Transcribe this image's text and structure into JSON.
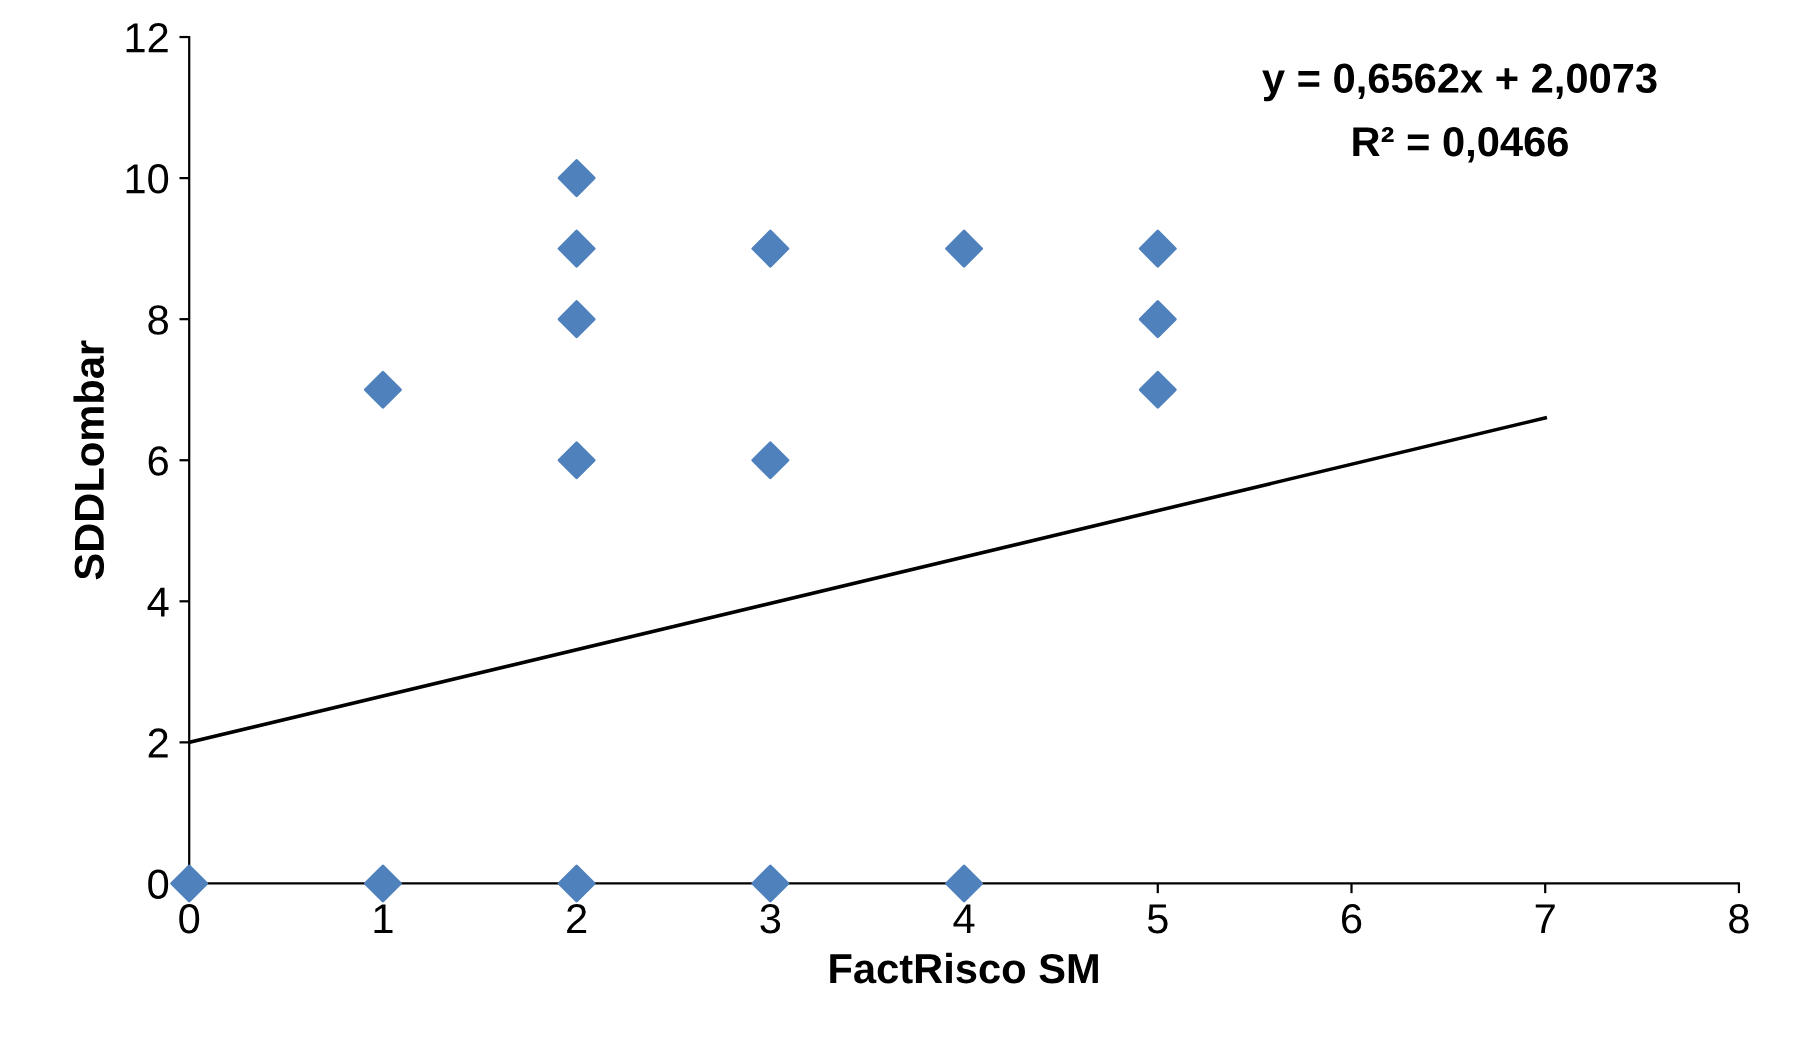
{
  "chart_data": {
    "type": "scatter",
    "xlabel": "FactRisco SM",
    "ylabel": "SDDLombar",
    "xlim": [
      0,
      8
    ],
    "xticks": [
      0,
      1,
      2,
      3,
      4,
      5,
      6,
      7,
      8
    ],
    "ylim": [
      0,
      12
    ],
    "yticks": [
      0,
      2,
      4,
      6,
      8,
      10,
      12
    ],
    "grid": false,
    "legend": false,
    "marker": "diamond",
    "annotations": [
      "y = 0,6562x + 2,0073",
      "R² = 0,0466"
    ],
    "series": [
      {
        "color": "#4f81bd",
        "x": [
          0,
          1,
          2,
          3,
          4,
          1,
          2,
          2,
          2,
          2,
          3,
          3,
          4,
          5,
          5,
          5
        ],
        "values": [
          0,
          0,
          0,
          0,
          0,
          7,
          10,
          9,
          8,
          6,
          9,
          6,
          9,
          9,
          8,
          7
        ]
      },
      {
        "type": "line",
        "color": "#000000",
        "marker": "none",
        "x": [
          0,
          7
        ],
        "values": [
          2.0,
          6.6
        ]
      }
    ]
  }
}
